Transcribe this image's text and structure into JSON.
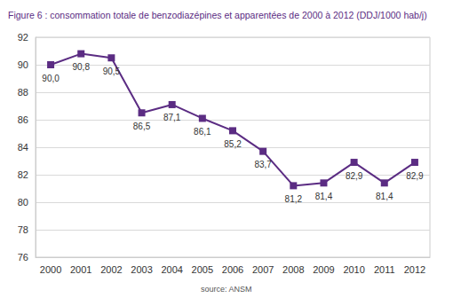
{
  "chart_data": {
    "type": "line",
    "title": "Figure 6 : consommation totale de benzodiazépines et apparentées de 2000 à 2012 (DDJ/1000 hab/j)",
    "annotations": [
      "source: ANSM"
    ],
    "categories": [
      "2000",
      "2001",
      "2002",
      "2003",
      "2004",
      "2005",
      "2006",
      "2007",
      "2008",
      "2009",
      "2010",
      "2011",
      "2012"
    ],
    "values": [
      90.0,
      90.8,
      90.5,
      86.5,
      87.1,
      86.1,
      85.2,
      83.7,
      81.2,
      81.4,
      82.9,
      81.4,
      82.9
    ],
    "value_labels": [
      "90,0",
      "90,8",
      "90,5",
      "86,5",
      "87,1",
      "86,1",
      "85,2",
      "83,7",
      "81,2",
      "81,4",
      "82,9",
      "81,4",
      "82,9"
    ],
    "data_labels": true,
    "color": "#5b2c83",
    "marker": "square",
    "line_style": "solid",
    "ylim": [
      76,
      92
    ],
    "yticks": [
      76,
      78,
      80,
      82,
      84,
      86,
      88,
      90,
      92
    ],
    "grid": true
  }
}
